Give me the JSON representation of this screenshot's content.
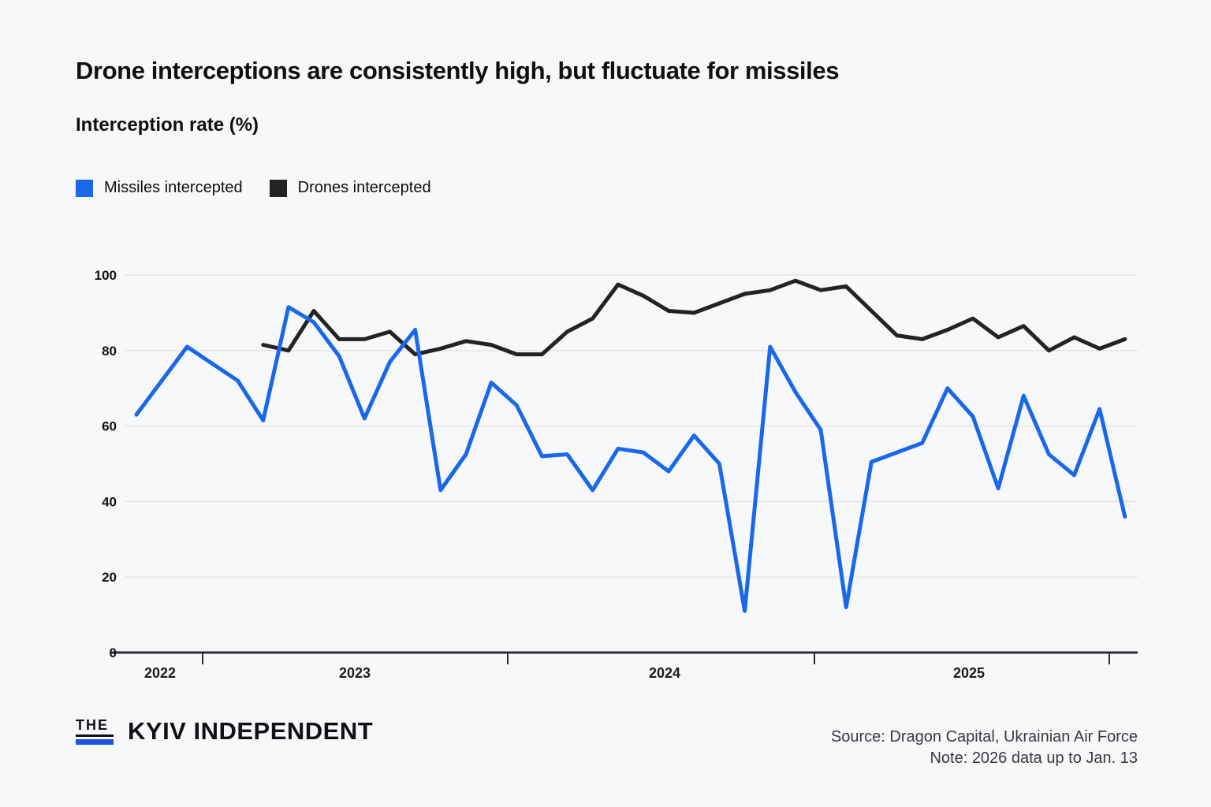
{
  "title": "Drone interceptions are consistently high, but fluctuate for missiles",
  "subtitle": "Interception rate (%)",
  "legend": [
    {
      "label": "Missiles intercepted",
      "color": "#1a68ea"
    },
    {
      "label": "Drones intercepted",
      "color": "#232326"
    }
  ],
  "chart_data": {
    "type": "line",
    "x": [
      "2022-10",
      "2022-11",
      "2022-12",
      "2023-01",
      "2023-02",
      "2023-03",
      "2023-04",
      "2023-05",
      "2023-06",
      "2023-07",
      "2023-08",
      "2023-09",
      "2023-10",
      "2023-11",
      "2023-12",
      "2024-01",
      "2024-02",
      "2024-03",
      "2024-04",
      "2024-05",
      "2024-06",
      "2024-07",
      "2024-08",
      "2024-09",
      "2024-10",
      "2024-11",
      "2024-12",
      "2025-01",
      "2025-02",
      "2025-03",
      "2025-04",
      "2025-05",
      "2025-06",
      "2025-07",
      "2025-08",
      "2025-09",
      "2025-10",
      "2025-11",
      "2025-12",
      "2026-01"
    ],
    "series": [
      {
        "name": "Missiles intercepted",
        "color": "#1a68ea",
        "values": [
          63,
          72,
          81,
          76.5,
          72,
          61.5,
          91.5,
          87.5,
          78.5,
          62,
          77,
          85.5,
          43,
          52.5,
          71.5,
          65.5,
          52,
          52.5,
          43,
          54,
          53,
          48,
          57.5,
          50,
          11,
          81,
          69,
          59,
          12,
          50.5,
          53,
          55.5,
          70,
          62.5,
          43.5,
          68,
          52.5,
          47,
          64.5,
          36
        ]
      },
      {
        "name": "Drones intercepted",
        "color": "#232326",
        "values": [
          null,
          null,
          null,
          null,
          null,
          81.5,
          80,
          90.5,
          83,
          83,
          85,
          79,
          80.5,
          82.5,
          81.5,
          79,
          79,
          85,
          88.5,
          97.5,
          94.5,
          90.5,
          90,
          92.5,
          95,
          96,
          98.5,
          96,
          97,
          90.5,
          84,
          83,
          85.5,
          88.5,
          83.5,
          86.5,
          80,
          83.5,
          80.5,
          83
        ]
      }
    ],
    "title": "Drone interceptions are consistently high, but fluctuate for missiles",
    "xlabel": "",
    "ylabel": "Interception rate (%)",
    "ylim": [
      0,
      100
    ],
    "y_ticks": [
      0,
      20,
      40,
      60,
      80,
      100
    ],
    "x_year_labels": [
      "2022",
      "2023",
      "2024",
      "2025"
    ],
    "grid": true,
    "legend_position": "top-left"
  },
  "footer": {
    "logo_the": "THE",
    "logo_name": "KYIV INDEPENDENT",
    "logo_bar_color": "#1c54e0",
    "source": "Source: Dragon Capital, Ukrainian Air Force",
    "note": "Note: 2026 data up to Jan. 13"
  }
}
